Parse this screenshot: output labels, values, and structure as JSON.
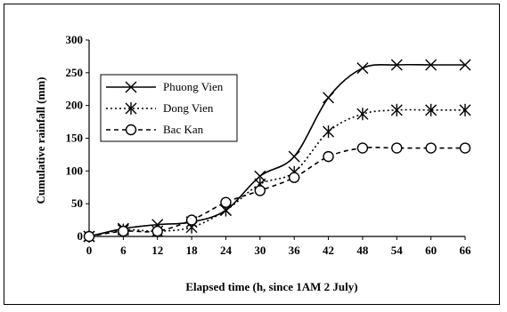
{
  "chart_data": {
    "type": "line",
    "xlabel": "Elapsed time (h, since 1AM 2 July)",
    "ylabel": "Cumulative rainfall (mm)",
    "xlim": [
      0,
      66
    ],
    "ylim": [
      0,
      300
    ],
    "xticks": [
      0,
      6,
      12,
      18,
      24,
      30,
      36,
      42,
      48,
      54,
      60,
      66
    ],
    "yticks": [
      0,
      50,
      100,
      150,
      200,
      250,
      300
    ],
    "grid": false,
    "legend_position": "left",
    "x": [
      0,
      6,
      12,
      18,
      24,
      30,
      36,
      42,
      48,
      54,
      60,
      66
    ],
    "series": [
      {
        "name": "Phuong Vien",
        "marker": "x",
        "line": "solid",
        "values": [
          0,
          12,
          18,
          22,
          40,
          92,
          122,
          212,
          257,
          262,
          262,
          262
        ]
      },
      {
        "name": "Dong Vien",
        "marker": "asterisk",
        "line": "dotted",
        "values": [
          0,
          10,
          8,
          14,
          40,
          80,
          98,
          160,
          187,
          193,
          193,
          193
        ]
      },
      {
        "name": "Bac Kan",
        "marker": "circle",
        "line": "dashed",
        "values": [
          0,
          8,
          8,
          25,
          52,
          70,
          90,
          122,
          135,
          135,
          135,
          135
        ]
      }
    ]
  }
}
